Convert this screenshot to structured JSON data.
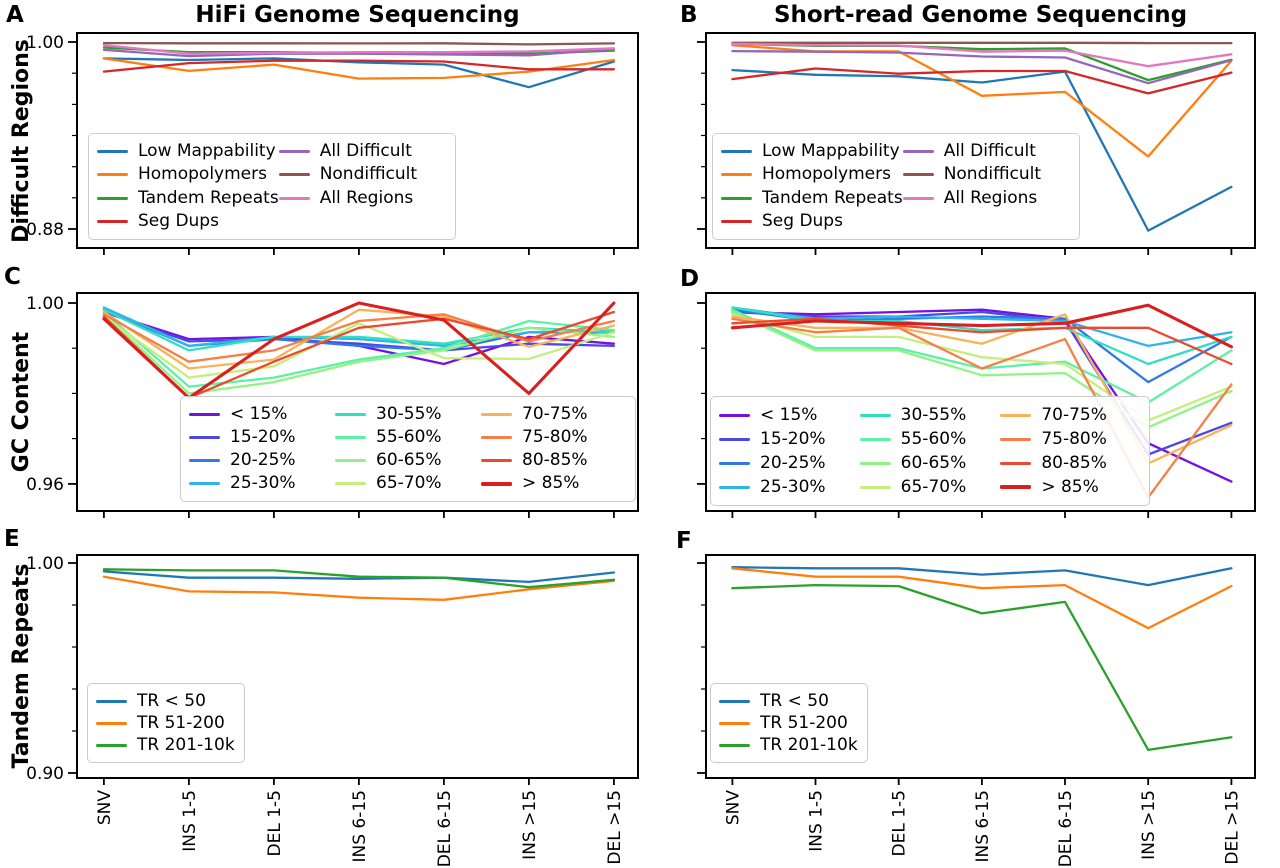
{
  "x_categories": [
    "SNV",
    "INS 1-5",
    "DEL 1-5",
    "INS 6-15",
    "DEL 6-15",
    "INS >15",
    "DEL >15"
  ],
  "chart_data": [
    {
      "panel_letter": "A",
      "title": "HiFi Genome Sequencing",
      "type": "line",
      "ylabel": "Difficult Regions",
      "ylim": [
        0.8678,
        1.0058
      ],
      "yticks": [
        {
          "value": 1.0,
          "label": "1.00"
        },
        {
          "value": 0.88,
          "label": "0.88"
        }
      ],
      "yticks_minor": [
        0.98,
        0.96,
        0.94,
        0.92,
        0.9
      ],
      "legend_columns": 2,
      "series": [
        {
          "name": "Low Mappability",
          "color": "#1f77b4",
          "values": [
            0.9895,
            0.9885,
            0.9895,
            0.987,
            0.9855,
            0.971,
            0.9875
          ]
        },
        {
          "name": "Homopolymers",
          "color": "#ff7f0e",
          "values": [
            0.9895,
            0.9815,
            0.9855,
            0.9765,
            0.977,
            0.981,
            0.9885
          ]
        },
        {
          "name": "Tandem Repeats",
          "color": "#2ca02c",
          "values": [
            0.9965,
            0.9935,
            0.9935,
            0.993,
            0.9935,
            0.9925,
            0.9945
          ]
        },
        {
          "name": "Seg Dups",
          "color": "#d62728",
          "values": [
            0.981,
            0.9865,
            0.988,
            0.988,
            0.9875,
            0.9825,
            0.9825
          ]
        },
        {
          "name": "All Difficult",
          "color": "#9467bd",
          "values": [
            0.995,
            0.991,
            0.9925,
            0.9925,
            0.992,
            0.9915,
            0.9955
          ]
        },
        {
          "name": "Nondifficult",
          "color": "#8c564b",
          "values": [
            0.9993,
            0.9992,
            0.9992,
            0.9991,
            0.9992,
            0.9985,
            0.9991
          ]
        },
        {
          "name": "All Regions",
          "color": "#e377c2",
          "values": [
            0.998,
            0.9925,
            0.993,
            0.9935,
            0.9935,
            0.994,
            0.996
          ]
        }
      ]
    },
    {
      "panel_letter": "B",
      "title": "Short-read Genome Sequencing",
      "type": "line",
      "ylabel": "",
      "ylim": [
        0.8678,
        1.0058
      ],
      "yticks": [
        {
          "value": 1.0,
          "label": ""
        },
        {
          "value": 0.88,
          "label": ""
        }
      ],
      "yticks_minor": [
        0.98,
        0.96,
        0.94,
        0.92,
        0.9
      ],
      "legend_columns": 2,
      "series": [
        {
          "name": "Low Mappability",
          "color": "#1f77b4",
          "values": [
            0.982,
            0.979,
            0.978,
            0.974,
            0.981,
            0.879,
            0.907
          ]
        },
        {
          "name": "Homopolymers",
          "color": "#ff7f0e",
          "values": [
            0.998,
            0.994,
            0.994,
            0.9655,
            0.968,
            0.9265,
            0.988
          ]
        },
        {
          "name": "Tandem Repeats",
          "color": "#2ca02c",
          "values": [
            0.9989,
            0.9975,
            0.9975,
            0.9954,
            0.9959,
            0.9756,
            0.9886
          ]
        },
        {
          "name": "Seg Dups",
          "color": "#d62728",
          "values": [
            0.9762,
            0.983,
            0.9797,
            0.9814,
            0.9814,
            0.967,
            0.9804
          ]
        },
        {
          "name": "All Difficult",
          "color": "#9467bd",
          "values": [
            0.9942,
            0.9938,
            0.9932,
            0.9907,
            0.9901,
            0.9736,
            0.9883
          ]
        },
        {
          "name": "Nondifficult",
          "color": "#8c564b",
          "values": [
            0.9995,
            0.9995,
            0.9995,
            0.9995,
            0.9995,
            0.9993,
            0.9993
          ]
        },
        {
          "name": "All Regions",
          "color": "#e377c2",
          "values": [
            0.9989,
            0.998,
            0.9978,
            0.9938,
            0.9945,
            0.9845,
            0.9921
          ]
        }
      ]
    },
    {
      "panel_letter": "C",
      "title": "",
      "type": "line",
      "ylabel": "GC Content",
      "ylim": [
        0.954,
        1.0022
      ],
      "yticks": [
        {
          "value": 1.0,
          "label": "1.00"
        },
        {
          "value": 0.96,
          "label": "0.96"
        }
      ],
      "yticks_minor": [
        0.99,
        0.98,
        0.97
      ],
      "legend_columns": 3,
      "series": [
        {
          "name": "< 15%",
          "color": "#7412e0",
          "values": [
            0.998,
            0.992,
            0.9925,
            0.9905,
            0.9865,
            0.9925,
            0.991
          ]
        },
        {
          "name": "15-20%",
          "color": "#4e48e3",
          "values": [
            0.998,
            0.9915,
            0.992,
            0.991,
            0.9895,
            0.991,
            0.9905
          ]
        },
        {
          "name": "20-25%",
          "color": "#2f7ae3",
          "values": [
            0.9985,
            0.9905,
            0.992,
            0.9905,
            0.9895,
            0.9935,
            0.9935
          ]
        },
        {
          "name": "25-30%",
          "color": "#2fb3e8",
          "values": [
            0.999,
            0.9905,
            0.9925,
            0.992,
            0.9905,
            0.9935,
            0.994
          ]
        },
        {
          "name": "30-55%",
          "color": "#2fdfc4",
          "values": [
            0.9985,
            0.9895,
            0.9925,
            0.9925,
            0.991,
            0.9945,
            0.9935
          ]
        },
        {
          "name": "55-60%",
          "color": "#5cf1a4",
          "values": [
            0.998,
            0.9815,
            0.9835,
            0.9875,
            0.99,
            0.996,
            0.994
          ]
        },
        {
          "name": "60-65%",
          "color": "#90f387",
          "values": [
            0.9975,
            0.98,
            0.9825,
            0.987,
            0.9895,
            0.9945,
            0.9925
          ]
        },
        {
          "name": "65-70%",
          "color": "#c5ee7c",
          "values": [
            0.997,
            0.9835,
            0.986,
            0.9955,
            0.9878,
            0.9876,
            0.9935
          ]
        },
        {
          "name": "70-75%",
          "color": "#f7b25a",
          "values": [
            0.998,
            0.9855,
            0.9875,
            0.9985,
            0.997,
            0.9903,
            0.995
          ]
        },
        {
          "name": "75-80%",
          "color": "#f67f45",
          "values": [
            0.9975,
            0.987,
            0.9895,
            0.996,
            0.9975,
            0.9915,
            0.996
          ]
        },
        {
          "name": "80-85%",
          "color": "#ec4a2f",
          "values": [
            0.997,
            0.979,
            0.987,
            0.9945,
            0.9965,
            0.992,
            0.998
          ]
        },
        {
          "name": "> 85%",
          "color": "#da1f20",
          "values": [
            0.9965,
            0.979,
            0.992,
            1.0,
            0.9962,
            0.98,
            1.0
          ]
        }
      ]
    },
    {
      "panel_letter": "D",
      "title": "",
      "type": "line",
      "ylabel": "",
      "ylim": [
        0.954,
        1.0022
      ],
      "yticks": [
        {
          "value": 1.0,
          "label": ""
        },
        {
          "value": 0.96,
          "label": ""
        }
      ],
      "yticks_minor": [
        0.99,
        0.98,
        0.97
      ],
      "legend_columns": 3,
      "series": [
        {
          "name": "< 15%",
          "color": "#7412e0",
          "values": [
            0.998,
            0.9975,
            0.998,
            0.9985,
            0.9965,
            0.969,
            0.9605
          ]
        },
        {
          "name": "15-20%",
          "color": "#4e48e3",
          "values": [
            0.998,
            0.997,
            0.997,
            0.998,
            0.996,
            0.9665,
            0.9735
          ]
        },
        {
          "name": "20-25%",
          "color": "#2f7ae3",
          "values": [
            0.9985,
            0.996,
            0.9965,
            0.997,
            0.9965,
            0.9825,
            0.9925
          ]
        },
        {
          "name": "25-30%",
          "color": "#2fb3e8",
          "values": [
            0.999,
            0.9965,
            0.997,
            0.9965,
            0.996,
            0.9905,
            0.9935
          ]
        },
        {
          "name": "30-55%",
          "color": "#2fdfc4",
          "values": [
            0.999,
            0.996,
            0.996,
            0.994,
            0.9945,
            0.9865,
            0.9925
          ]
        },
        {
          "name": "55-60%",
          "color": "#5cf1a4",
          "values": [
            0.9985,
            0.99,
            0.99,
            0.9855,
            0.987,
            0.978,
            0.9895
          ]
        },
        {
          "name": "60-65%",
          "color": "#90f387",
          "values": [
            0.998,
            0.9895,
            0.9895,
            0.984,
            0.9845,
            0.9725,
            0.9805
          ]
        },
        {
          "name": "65-70%",
          "color": "#c5ee7c",
          "values": [
            0.9975,
            0.9925,
            0.9925,
            0.988,
            0.9865,
            0.974,
            0.9815
          ]
        },
        {
          "name": "70-75%",
          "color": "#f7b25a",
          "values": [
            0.997,
            0.9945,
            0.9945,
            0.991,
            0.9975,
            0.9645,
            0.973
          ]
        },
        {
          "name": "75-80%",
          "color": "#f67f45",
          "values": [
            0.9965,
            0.9935,
            0.9945,
            0.9855,
            0.992,
            0.957,
            0.982
          ]
        },
        {
          "name": "80-85%",
          "color": "#ec4a2f",
          "values": [
            0.9955,
            0.9965,
            0.995,
            0.9935,
            0.9945,
            0.9945,
            0.9865
          ]
        },
        {
          "name": "> 85%",
          "color": "#da1f20",
          "values": [
            0.9945,
            0.996,
            0.9955,
            0.995,
            0.9955,
            0.9995,
            0.9903
          ]
        }
      ]
    },
    {
      "panel_letter": "E",
      "title": "",
      "type": "line",
      "ylabel": "Tandem Repeats",
      "ylim": [
        0.89762,
        1.00381
      ],
      "yticks": [
        {
          "value": 1.0,
          "label": "1.00"
        },
        {
          "value": 0.9,
          "label": "0.90"
        }
      ],
      "yticks_minor": [
        0.98,
        0.96,
        0.94,
        0.92
      ],
      "legend_columns": 1,
      "series": [
        {
          "name": "TR < 50",
          "color": "#1f77b4",
          "values": [
            0.996,
            0.993,
            0.993,
            0.9925,
            0.993,
            0.991,
            0.9955
          ]
        },
        {
          "name": "TR 51-200",
          "color": "#ff7f0e",
          "values": [
            0.9935,
            0.9865,
            0.986,
            0.9835,
            0.9825,
            0.9875,
            0.9915
          ]
        },
        {
          "name": "TR 201-10k",
          "color": "#2ca02c",
          "values": [
            0.997,
            0.9965,
            0.9965,
            0.9935,
            0.993,
            0.9885,
            0.992
          ]
        }
      ]
    },
    {
      "panel_letter": "F",
      "title": "",
      "type": "line",
      "ylabel": "",
      "ylim": [
        0.89762,
        1.00381
      ],
      "yticks": [
        {
          "value": 1.0,
          "label": ""
        },
        {
          "value": 0.9,
          "label": ""
        }
      ],
      "yticks_minor": [
        0.98,
        0.96,
        0.94,
        0.92
      ],
      "legend_columns": 1,
      "series": [
        {
          "name": "TR < 50",
          "color": "#1f77b4",
          "values": [
            0.998,
            0.9975,
            0.9975,
            0.9945,
            0.9965,
            0.9895,
            0.9975
          ]
        },
        {
          "name": "TR 51-200",
          "color": "#ff7f0e",
          "values": [
            0.9975,
            0.9935,
            0.9935,
            0.988,
            0.9895,
            0.969,
            0.989
          ]
        },
        {
          "name": "TR 201-10k",
          "color": "#2ca02c",
          "values": [
            0.988,
            0.9895,
            0.989,
            0.976,
            0.9815,
            0.911,
            0.917
          ]
        }
      ]
    }
  ]
}
